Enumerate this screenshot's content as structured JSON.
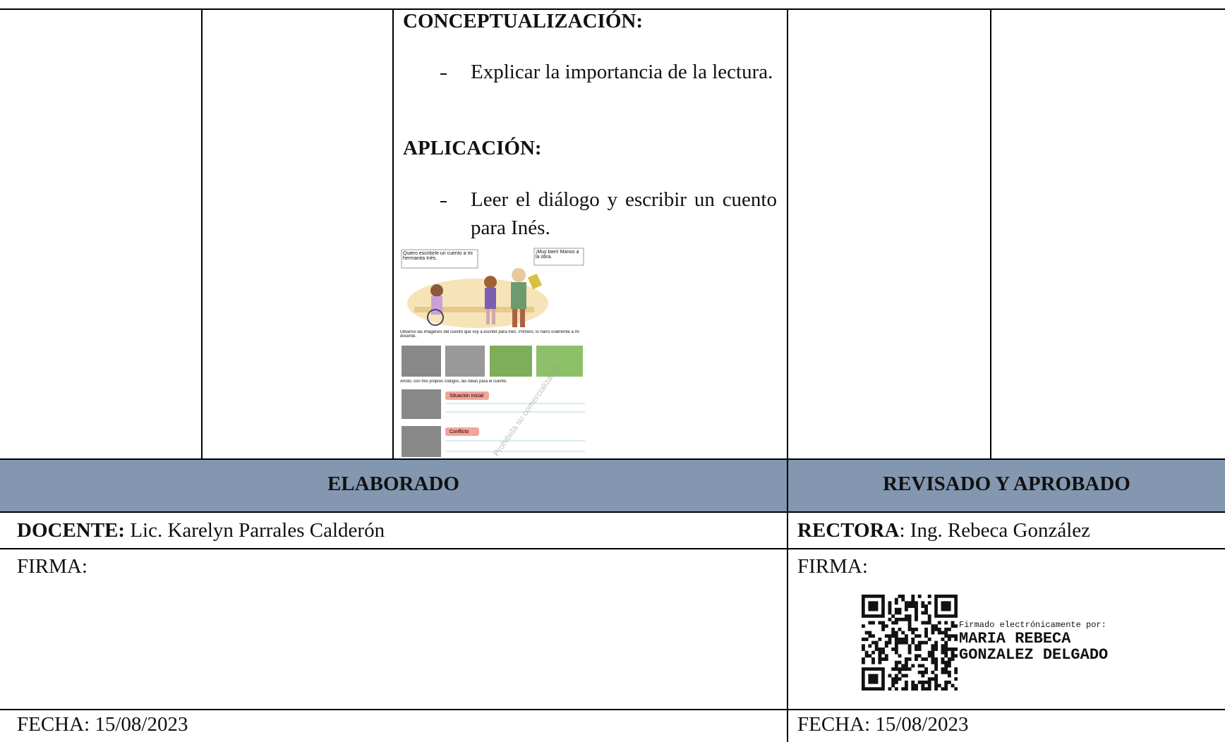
{
  "content": {
    "sections": [
      {
        "heading": "CONCEPTUALIZACIÓN:",
        "bullets": [
          "Explicar la importancia de la lectura."
        ]
      },
      {
        "heading": "APLICACIÓN:",
        "bullets": [
          "Leer el diálogo y escribir un cuento para Inés."
        ]
      }
    ],
    "image": {
      "bubble_left": "Quiero escribirle un cuento a mi hermanita Inés.",
      "bubble_right": "¡Muy bien! Manos a la obra.",
      "instruction_1": "Observo las imágenes del cuento que voy a escribir para Inés. Primero, lo narro oralmente a mi docente.",
      "instruction_2": "Anoto, con mis propios códigos, las ideas para el cuento.",
      "tag_1": "Situación inicial",
      "tag_2": "Conflicto",
      "watermark": "Prohibida su comercialización"
    }
  },
  "footer": {
    "left_header": "ELABORADO",
    "right_header": "REVISADO Y APROBADO",
    "left_role_label": "DOCENTE:",
    "left_role_name": " Lic. Karelyn Parrales Calderón",
    "right_role_label": "RECTORA",
    "right_role_name": ": Ing. Rebeca González",
    "left_signature_label": "FIRMA:",
    "right_signature_label": "FIRMA:",
    "signature": {
      "caption": "Firmado electrónicamente por:",
      "name_line_1": "MARIA REBECA",
      "name_line_2": "GONZALEZ DELGADO"
    },
    "left_date": "FECHA: 15/08/2023",
    "right_date": "FECHA: 15/08/2023"
  }
}
